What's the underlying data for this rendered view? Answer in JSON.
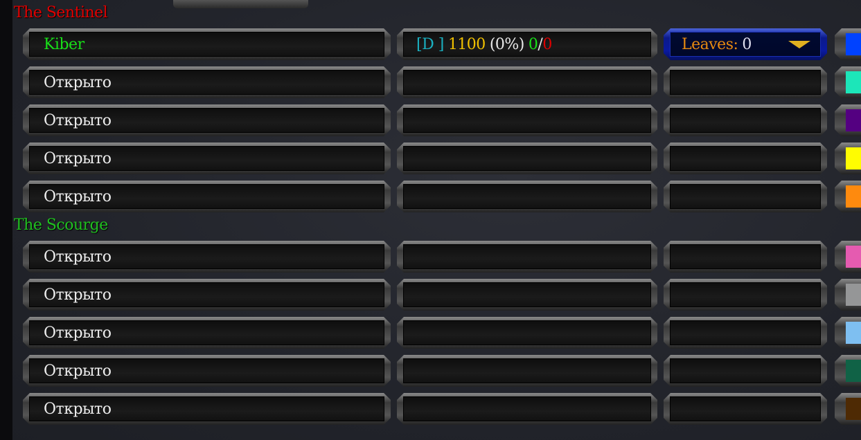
{
  "teams": [
    {
      "name": "The Sentinel",
      "color": "#e00000",
      "slots": [
        {
          "player": "Kiber",
          "player_color": "#18e018",
          "info": {
            "tag": "[D ]",
            "score": "1100",
            "pct": "(0%)",
            "wins": "0",
            "sep": "/",
            "losses": "0"
          },
          "dropdown": {
            "label": "Leaves:",
            "value": "0"
          },
          "swatch": "#0042ff"
        },
        {
          "player": "Открыто",
          "swatch": "#1ce6b9"
        },
        {
          "player": "Открыто",
          "swatch": "#540081"
        },
        {
          "player": "Открыто",
          "swatch": "#fffc01"
        },
        {
          "player": "Открыто",
          "swatch": "#fe8a0e"
        }
      ]
    },
    {
      "name": "The Scourge",
      "color": "#20c020",
      "slots": [
        {
          "player": "Открыто",
          "swatch": "#e55bb0"
        },
        {
          "player": "Открыто",
          "swatch": "#959697"
        },
        {
          "player": "Открыто",
          "swatch": "#7ebff1"
        },
        {
          "player": "Открыто",
          "swatch": "#106246"
        },
        {
          "player": "Открыто",
          "swatch": "#4e2a04"
        }
      ]
    }
  ]
}
